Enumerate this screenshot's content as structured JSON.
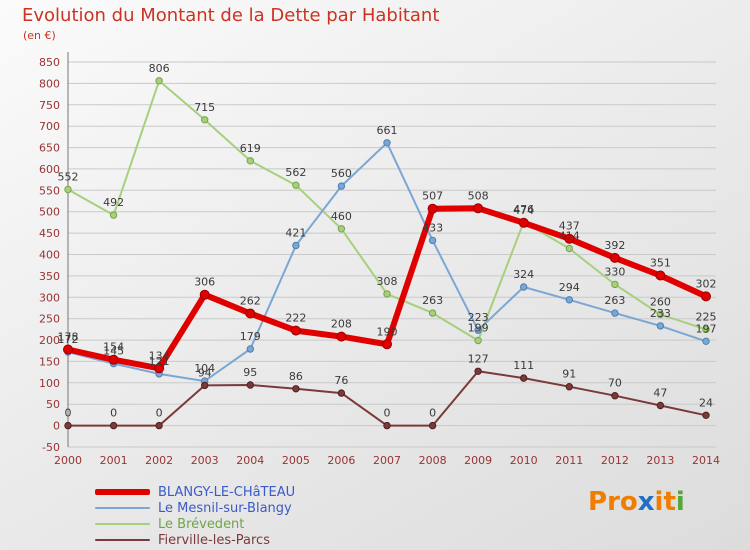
{
  "title": {
    "text": "Evolution du Montant de la Dette par Habitant",
    "subtitle": "(en €)"
  },
  "chart_data": {
    "type": "line",
    "title": "Evolution du Montant de la Dette par Habitant",
    "subtitle_unit": "(en €)",
    "x": [
      2000,
      2001,
      2002,
      2003,
      2004,
      2005,
      2006,
      2007,
      2008,
      2009,
      2010,
      2011,
      2012,
      2013,
      2014
    ],
    "ylim": [
      -50,
      850
    ],
    "ytick_step": 50,
    "grid": "horizontal",
    "legend_position": "bottom-left",
    "axis_label_color": "#993333",
    "value_label_color": "#3a3a3a",
    "series": [
      {
        "name": "BLANGY-LE-CHâTEAU",
        "color": "#e00000",
        "edge": "#990000",
        "legend_color": "#3a5bc7",
        "thick": true,
        "values": [
          178,
          154,
          134,
          306,
          262,
          222,
          208,
          190,
          507,
          508,
          474,
          437,
          392,
          351,
          302
        ]
      },
      {
        "name": "Le Mesnil-sur-Blangy",
        "color": "#7ba7d4",
        "edge": "#4d7fb0",
        "legend_color": "#3a5bc7",
        "thick": false,
        "values": [
          172,
          145,
          121,
          104,
          179,
          421,
          560,
          661,
          433,
          223,
          324,
          294,
          263,
          233,
          197
        ]
      },
      {
        "name": "Le Brévedent",
        "color": "#a7cf7d",
        "edge": "#74a548",
        "legend_color": "#6fa447",
        "thick": false,
        "values": [
          552,
          492,
          806,
          715,
          619,
          562,
          460,
          308,
          263,
          199,
          476,
          414,
          330,
          260,
          225
        ]
      },
      {
        "name": "Fierville-les-Parcs",
        "color": "#7a3a3a",
        "edge": "#521f1f",
        "legend_color": "#7a3a3a",
        "thick": false,
        "values": [
          0,
          0,
          0,
          94,
          95,
          86,
          76,
          0,
          0,
          127,
          111,
          91,
          70,
          47,
          24
        ]
      }
    ]
  },
  "logo": {
    "text": "Proxiti",
    "letters": [
      {
        "ch": "P",
        "color": "#f07d00"
      },
      {
        "ch": "r",
        "color": "#f07d00"
      },
      {
        "ch": "o",
        "color": "#f07d00"
      },
      {
        "ch": "x",
        "color": "#1f6fc4"
      },
      {
        "ch": "i",
        "color": "#f07d00"
      },
      {
        "ch": "t",
        "color": "#f07d00"
      },
      {
        "ch": "i",
        "color": "#57a639"
      }
    ]
  }
}
